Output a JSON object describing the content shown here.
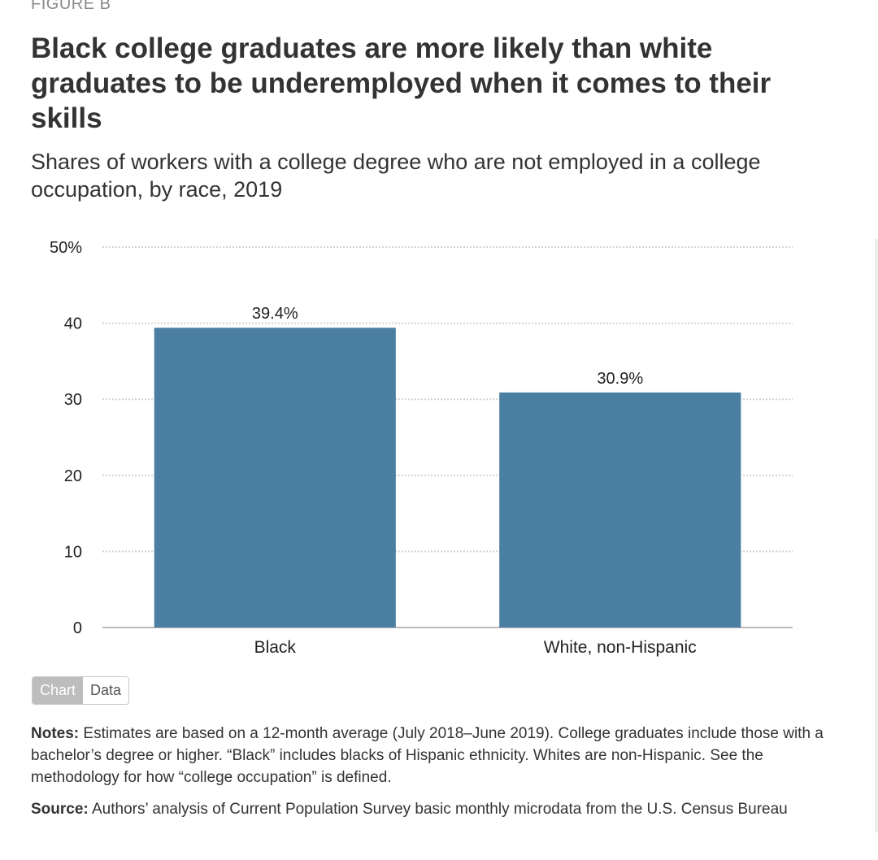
{
  "figure_label": "FIGURE B",
  "title": "Black college graduates are more likely than white graduates to be underemployed when it comes to their skills",
  "subtitle": "Shares of workers with a college degree who are not employed in a college occupation, by race, 2019",
  "colors": {
    "bar": "#4a7fa1",
    "grid": "#d4d4d4",
    "axis": "#bbbbbb"
  },
  "chart_data": {
    "type": "bar",
    "title": "Black college graduates are more likely than white graduates to be underemployed when it comes to their skills",
    "subtitle": "Shares of workers with a college degree who are not employed in a college occupation, by race, 2019",
    "categories": [
      "Black",
      "White, non-Hispanic"
    ],
    "values": [
      39.4,
      30.9
    ],
    "value_labels": [
      "39.4%",
      "30.9%"
    ],
    "ylim": [
      0,
      50
    ],
    "yticks": [
      0,
      10,
      20,
      30,
      40,
      50
    ],
    "ytick_labels": [
      "0",
      "10",
      "20",
      "30",
      "40",
      "50%"
    ],
    "xlabel": "",
    "ylabel": "",
    "grid": true,
    "legend": "none"
  },
  "toggle": {
    "chart_label": "Chart",
    "data_label": "Data",
    "active": "Chart"
  },
  "notes": {
    "lead": "Notes:",
    "text": "Estimates are based on a 12-month average (July 2018–June 2019). College graduates include those with a bachelor’s degree or higher. “Black” includes blacks of Hispanic ethnicity. Whites are non-Hispanic. See the methodology for how “college occupation” is defined."
  },
  "source": {
    "lead": "Source:",
    "text": "Authors’ analysis of Current Population Survey basic monthly microdata from the U.S. Census Bureau"
  }
}
